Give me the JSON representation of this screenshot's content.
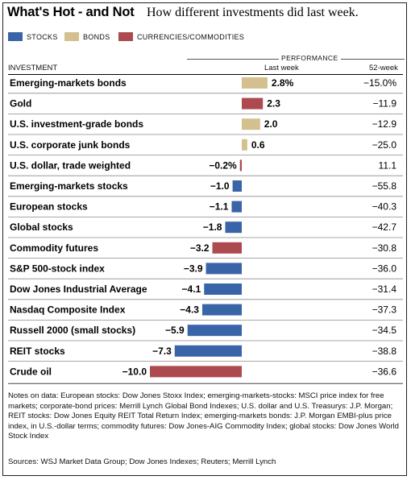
{
  "title": "What's Hot - and Not",
  "subtitle": "How different investments did last week.",
  "legend": [
    {
      "label": "STOCKS",
      "color": "#3a64a8"
    },
    {
      "label": "BONDS",
      "color": "#d4c08e"
    },
    {
      "label": "CURRENCIES/COMMODITIES",
      "color": "#ad4a4f"
    }
  ],
  "header": {
    "investment": "INVESTMENT",
    "performance": "PERFORMANCE",
    "last_week": "Last week",
    "week52": "52-week"
  },
  "chart_data": {
    "type": "bar",
    "categories": [
      "Emerging-markets bonds",
      "Gold",
      "U.S. investment-grade bonds",
      "U.S. corporate junk bonds",
      "U.S. dollar, trade weighted",
      "Emerging-markets stocks",
      "European stocks",
      "Global stocks",
      "Commodity futures",
      "S&P 500-stock index",
      "Dow Jones Industrial Average",
      "Nasdaq Composite Index",
      "Russell 2000 (small stocks)",
      "REIT stocks",
      "Crude oil"
    ],
    "series": [
      {
        "name": "Last week",
        "values": [
          2.8,
          2.3,
          2.0,
          0.6,
          -0.2,
          -1.0,
          -1.1,
          -1.8,
          -3.2,
          -3.9,
          -4.1,
          -4.3,
          -5.9,
          -7.3,
          -10.0
        ],
        "labels": [
          "2.8%",
          "2.3",
          "2.0",
          "0.6",
          "−0.2%",
          "−1.0",
          "−1.1",
          "−1.8",
          "−3.2",
          "−3.9",
          "−4.1",
          "−4.3",
          "−5.9",
          "−7.3",
          "−10.0"
        ]
      },
      {
        "name": "52-week",
        "values": [
          -15.0,
          -11.9,
          -12.9,
          -25.0,
          11.1,
          -55.8,
          -40.3,
          -42.7,
          -30.8,
          -36.0,
          -31.4,
          -37.3,
          -34.5,
          -38.8,
          -36.6
        ],
        "labels": [
          "−15.0%",
          "−11.9",
          "−12.9",
          "−25.0",
          "11.1",
          "−55.8",
          "−40.3",
          "−42.7",
          "−30.8",
          "−36.0",
          "−31.4",
          "−37.3",
          "−34.5",
          "−38.8",
          "−36.6"
        ]
      }
    ],
    "groups": [
      "bonds",
      "currencies",
      "bonds",
      "bonds",
      "currencies",
      "stocks",
      "stocks",
      "stocks",
      "currencies",
      "stocks",
      "stocks",
      "stocks",
      "stocks",
      "stocks",
      "currencies"
    ],
    "group_colors": {
      "stocks": "#3a64a8",
      "bonds": "#d4c08e",
      "currencies": "#ad4a4f"
    },
    "xlim": [
      -10,
      3
    ]
  },
  "notes": "Notes on data: European stocks: Dow Jones Stoxx Index; emerging-markets-stocks: MSCI price index for free markets; corporate-bond prices: Merrill Lynch Global Bond Indexes; U.S. dollar and U.S. Treasurys: J.P. Morgan; REIT stocks: Dow Jones Equity REIT Total Return Index; emerging-markets bonds: J.P. Morgan EMBI-plus price index, in U.S.-dollar terms; commodity futures: Dow Jones-AIG Commodity Index; global stocks: Dow Jones World Stock Index",
  "sources": "Sources: WSJ Market Data Group; Dow Jones Indexes; Reuters; Merrill Lynch"
}
